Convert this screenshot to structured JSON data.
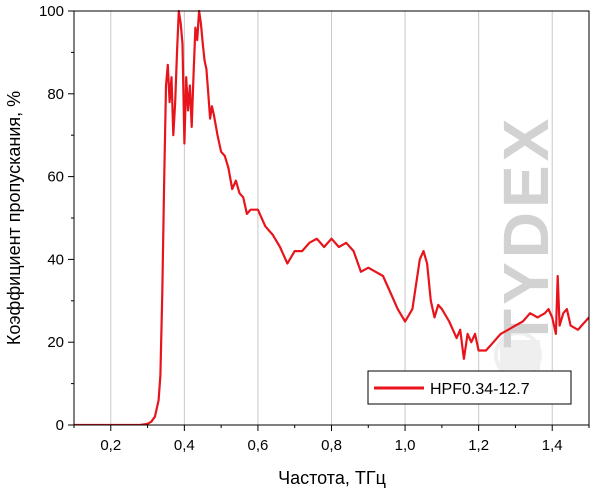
{
  "chart_data": {
    "type": "line",
    "xlabel": "Частота, ТГц",
    "ylabel": "Коэффициент пропускания, %",
    "xlim": [
      0.1,
      1.5
    ],
    "ylim": [
      0,
      100
    ],
    "x_ticks": [
      0.2,
      0.4,
      0.6,
      0.8,
      1.0,
      1.2,
      1.4
    ],
    "x_tick_labels": [
      "0,2",
      "0,4",
      "0,6",
      "0,8",
      "1,0",
      "1,2",
      "1,4"
    ],
    "y_ticks": [
      0,
      20,
      40,
      60,
      80,
      100
    ],
    "y_tick_labels": [
      "0",
      "20",
      "40",
      "60",
      "80",
      "100"
    ],
    "grid": "vertical",
    "legend_position": "bottom-right",
    "colors": {
      "series": "#e8141c",
      "watermark": "#d2d2d2"
    },
    "watermark": "TYDEX",
    "series": [
      {
        "name": "HPF0.34-12.7",
        "x": [
          0.1,
          0.2,
          0.28,
          0.3,
          0.31,
          0.32,
          0.33,
          0.335,
          0.34,
          0.345,
          0.35,
          0.355,
          0.36,
          0.365,
          0.37,
          0.375,
          0.38,
          0.385,
          0.39,
          0.395,
          0.4,
          0.405,
          0.41,
          0.415,
          0.42,
          0.425,
          0.43,
          0.435,
          0.44,
          0.445,
          0.45,
          0.455,
          0.46,
          0.465,
          0.47,
          0.475,
          0.48,
          0.49,
          0.5,
          0.51,
          0.52,
          0.53,
          0.54,
          0.55,
          0.56,
          0.57,
          0.58,
          0.6,
          0.62,
          0.64,
          0.66,
          0.68,
          0.7,
          0.72,
          0.74,
          0.76,
          0.78,
          0.8,
          0.82,
          0.84,
          0.86,
          0.88,
          0.9,
          0.92,
          0.94,
          0.96,
          0.98,
          1.0,
          1.02,
          1.04,
          1.05,
          1.06,
          1.07,
          1.08,
          1.09,
          1.1,
          1.12,
          1.14,
          1.15,
          1.16,
          1.17,
          1.18,
          1.19,
          1.2,
          1.22,
          1.24,
          1.26,
          1.28,
          1.3,
          1.32,
          1.34,
          1.36,
          1.38,
          1.39,
          1.4,
          1.41,
          1.415,
          1.42,
          1.43,
          1.44,
          1.45,
          1.47,
          1.48,
          1.49,
          1.5
        ],
        "y": [
          0,
          0,
          0,
          0.3,
          0.8,
          2,
          6,
          12,
          32,
          58,
          82,
          87,
          78,
          84,
          70,
          78,
          90,
          100,
          97,
          92,
          68,
          84,
          76,
          82,
          72,
          85,
          96,
          93,
          100,
          97,
          92,
          88,
          86,
          80,
          74,
          77,
          75,
          70,
          66,
          65,
          62,
          57,
          59,
          56,
          55,
          51,
          52,
          52,
          48,
          46,
          43,
          39,
          42,
          42,
          44,
          45,
          43,
          45,
          43,
          44,
          42,
          37,
          38,
          37,
          36,
          32,
          28,
          25,
          28,
          40,
          42,
          39,
          30,
          26,
          29,
          28,
          25,
          21,
          23,
          16,
          22,
          20,
          22,
          18,
          18,
          20,
          22,
          23,
          24,
          25,
          27,
          26,
          27,
          28,
          26,
          22,
          36,
          24,
          27,
          28,
          24,
          23,
          24,
          25,
          26
        ]
      }
    ]
  }
}
